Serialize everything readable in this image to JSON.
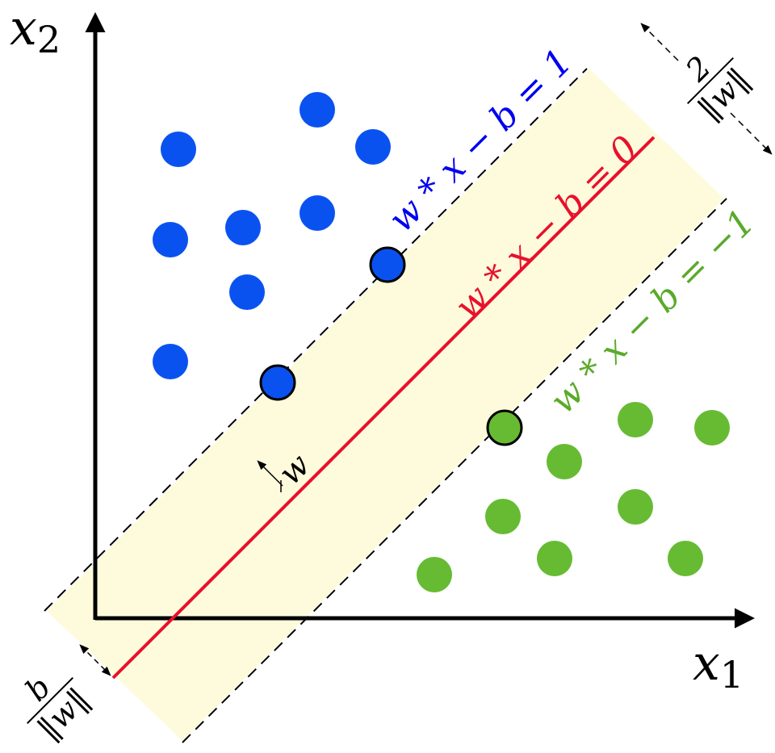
{
  "axes": {
    "x_label": "x",
    "x_sub": "1",
    "y_label": "x",
    "y_sub": "2"
  },
  "lines": {
    "positive_margin": {
      "label": "w * x − b = 1",
      "color": "#0000ee"
    },
    "decision_boundary": {
      "label": "w * x − b = 0",
      "color": "#e8112d"
    },
    "negative_margin": {
      "label": "w * x − b = −1",
      "color": "#5aaa2a"
    }
  },
  "margin_width": {
    "numerator": "2",
    "denominator": "‖w‖"
  },
  "offset": {
    "numerator": "b",
    "denominator": "‖w‖"
  },
  "normal_vector": {
    "label": "w"
  },
  "colors": {
    "band": "#fdfbdc",
    "class_positive": "#0a52f0",
    "class_negative": "#66bb33"
  }
}
